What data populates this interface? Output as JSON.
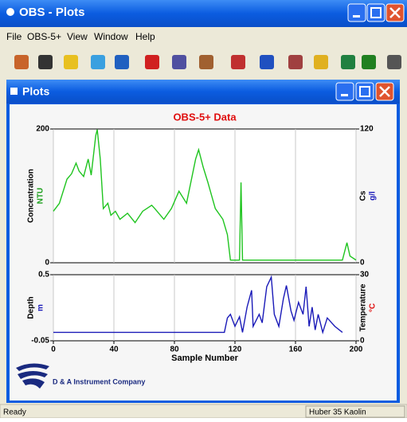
{
  "window": {
    "title": "OBS - Plots"
  },
  "menu": [
    "File",
    "OBS-5+",
    "View",
    "Window",
    "Help"
  ],
  "plots_window": {
    "title": "Plots"
  },
  "chart_data": [
    {
      "type": "line",
      "title": "OBS-5+ Data",
      "ylabel": "Concentration",
      "ylabel_unit": "NTU",
      "y2label": "Cs",
      "y2label_unit": "g/l",
      "xlim": [
        0,
        200
      ],
      "ylim": [
        0,
        200
      ],
      "yticks": [
        0,
        200
      ],
      "y2lim": [
        0,
        120
      ],
      "y2ticks": [
        0,
        120
      ],
      "grid": true,
      "series": [
        {
          "color": "#1fc41f",
          "x": [
            0,
            4,
            9,
            12,
            15,
            17,
            20,
            23,
            25,
            28,
            29,
            31,
            33,
            36,
            38,
            41,
            44,
            49,
            54,
            59,
            65,
            67,
            73,
            78,
            83,
            88,
            94,
            96,
            99,
            102,
            107,
            112,
            115,
            117,
            123,
            124,
            125,
            191,
            194,
            196,
            200
          ],
          "values": [
            77,
            89,
            125,
            133,
            149,
            137,
            129,
            155,
            131,
            190,
            199,
            155,
            81,
            89,
            71,
            77,
            65,
            74,
            60,
            77,
            86,
            81,
            65,
            81,
            107,
            89,
            155,
            169,
            143,
            121,
            81,
            65,
            42,
            4,
            4,
            120,
            4,
            4,
            30,
            10,
            4
          ]
        }
      ]
    },
    {
      "type": "line",
      "xlabel": "Sample Number",
      "ylabel": "Depth",
      "ylabel_unit": "m",
      "y2label": "Temperature",
      "y2label_unit": "°C",
      "xlim": [
        0,
        200
      ],
      "xticks": [
        0,
        40,
        80,
        120,
        160,
        200
      ],
      "ylim": [
        -0.05,
        0.5
      ],
      "yticks": [
        -0.05,
        0.5
      ],
      "y2lim": [
        0,
        30
      ],
      "y2ticks": [
        0,
        30
      ],
      "grid": true,
      "series": [
        {
          "color": "#1a1ab8",
          "x": [
            0,
            113,
            115,
            117,
            120,
            123,
            125,
            128,
            131,
            132,
            136,
            138,
            141,
            144,
            146,
            149,
            152,
            154,
            157,
            159,
            162,
            165,
            167,
            169,
            171,
            173,
            175,
            178,
            181,
            186,
            191
          ],
          "values": [
            0.02,
            0.02,
            0.14,
            0.17,
            0.07,
            0.15,
            0.02,
            0.23,
            0.37,
            0.07,
            0.17,
            0.1,
            0.4,
            0.48,
            0.17,
            0.07,
            0.3,
            0.41,
            0.2,
            0.12,
            0.27,
            0.17,
            0.4,
            0.07,
            0.23,
            0.04,
            0.17,
            0.02,
            0.14,
            0.07,
            0.02
          ]
        }
      ]
    }
  ],
  "logo_text": "D & A Instrument Company",
  "status": [
    "Ready",
    "Huber 35 Kaolin"
  ]
}
